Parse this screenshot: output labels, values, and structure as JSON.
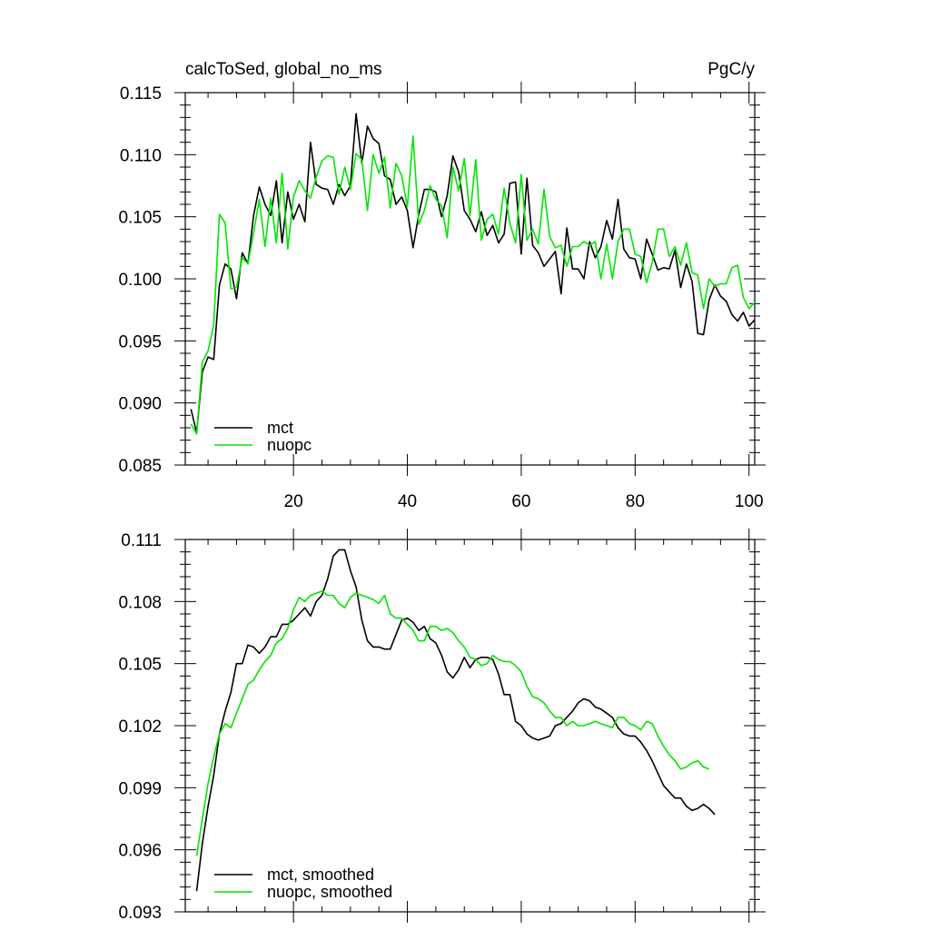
{
  "header": {
    "title_left": "calcToSed, global_no_ms",
    "title_right": "PgC/y"
  },
  "colors": {
    "mct": "#000000",
    "nuopc": "#00e600"
  },
  "chart_data": [
    {
      "type": "line",
      "xlim": [
        1,
        101
      ],
      "ylim": [
        0.085,
        0.115
      ],
      "yticks": [
        "0.085",
        "0.090",
        "0.095",
        "0.100",
        "0.105",
        "0.110",
        "0.115"
      ],
      "xticks": [
        "20",
        "40",
        "60",
        "80",
        "100"
      ],
      "legend_position": "bottom-left",
      "series": [
        {
          "name": "mct",
          "color": "#000000",
          "x_start": 2,
          "values": [
            0.0895,
            0.0876,
            0.0925,
            0.0937,
            0.0935,
            0.0995,
            0.1012,
            0.1008,
            0.0984,
            0.1021,
            0.1012,
            0.1051,
            0.1074,
            0.106,
            0.1051,
            0.1079,
            0.1029,
            0.107,
            0.1048,
            0.106,
            0.1046,
            0.111,
            0.1076,
            0.1073,
            0.1072,
            0.106,
            0.1076,
            0.1067,
            0.1075,
            0.1133,
            0.1093,
            0.1123,
            0.1113,
            0.1109,
            0.1083,
            0.108,
            0.106,
            0.1066,
            0.1055,
            0.1025,
            0.1052,
            0.1072,
            0.1072,
            0.107,
            0.105,
            0.1067,
            0.1099,
            0.1086,
            0.1055,
            0.1048,
            0.1038,
            0.1054,
            0.1035,
            0.1043,
            0.1029,
            0.1036,
            0.1077,
            0.1078,
            0.102,
            0.1081,
            0.1027,
            0.1021,
            0.101,
            0.1016,
            0.1022,
            0.0988,
            0.1041,
            0.1008,
            0.1008,
            0.1,
            0.103,
            0.1017,
            0.1026,
            0.1047,
            0.1032,
            0.1064,
            0.1024,
            0.1017,
            0.1016,
            0.1,
            0.1032,
            0.102,
            0.1007,
            0.1009,
            0.1008,
            0.1023,
            0.0993,
            0.1012,
            0.0998,
            0.0956,
            0.0955,
            0.0983,
            0.0995,
            0.0986,
            0.0982,
            0.0971,
            0.0966,
            0.0973,
            0.0962,
            0.0967
          ]
        },
        {
          "name": "nuopc",
          "color": "#00e600",
          "x_start": 2,
          "values": [
            0.0883,
            0.0875,
            0.0933,
            0.0942,
            0.0963,
            0.1052,
            0.1045,
            0.0992,
            0.0993,
            0.1017,
            0.1012,
            0.1037,
            0.1064,
            0.1026,
            0.1065,
            0.1029,
            0.1085,
            0.1024,
            0.1066,
            0.1079,
            0.1071,
            0.1065,
            0.1082,
            0.1095,
            0.1099,
            0.1098,
            0.1068,
            0.109,
            0.1072,
            0.1101,
            0.1096,
            0.1055,
            0.11,
            0.1085,
            0.1098,
            0.1057,
            0.1093,
            0.1083,
            0.1058,
            0.1115,
            0.1044,
            0.1055,
            0.1075,
            0.1064,
            0.1059,
            0.1033,
            0.109,
            0.1071,
            0.1097,
            0.1051,
            0.1096,
            0.1031,
            0.1048,
            0.1052,
            0.1036,
            0.1073,
            0.1045,
            0.1029,
            0.1084,
            0.1031,
            0.104,
            0.1028,
            0.1072,
            0.1034,
            0.1025,
            0.1027,
            0.101,
            0.1026,
            0.1026,
            0.103,
            0.1027,
            0.103,
            0.1,
            0.1028,
            0.1,
            0.103,
            0.104,
            0.104,
            0.102,
            0.1018,
            0.0997,
            0.1013,
            0.104,
            0.104,
            0.1018,
            0.1026,
            0.1011,
            0.1029,
            0.1005,
            0.1003,
            0.0976,
            0.1,
            0.0994,
            0.0996,
            0.0996,
            0.1009,
            0.1011,
            0.0985,
            0.0976,
            0.0981
          ]
        }
      ]
    },
    {
      "type": "line",
      "xlim": [
        1,
        101
      ],
      "ylim": [
        0.093,
        0.111
      ],
      "yticks": [
        "0.093",
        "0.096",
        "0.099",
        "0.102",
        "0.105",
        "0.108",
        "0.111"
      ],
      "legend_position": "bottom-left",
      "series": [
        {
          "name": "mct, smoothed",
          "color": "#000000",
          "x_start": 3,
          "values": [
            0.094,
            0.0963,
            0.0981,
            0.0996,
            0.1016,
            0.1027,
            0.1036,
            0.105,
            0.105,
            0.1059,
            0.1058,
            0.1055,
            0.1058,
            0.1063,
            0.1063,
            0.1069,
            0.1069,
            0.1071,
            0.1074,
            0.1077,
            0.1073,
            0.108,
            0.1083,
            0.1091,
            0.1102,
            0.1105,
            0.1105,
            0.1095,
            0.1087,
            0.1071,
            0.1061,
            0.1058,
            0.1058,
            0.1057,
            0.1057,
            0.1064,
            0.1071,
            0.1072,
            0.107,
            0.1066,
            0.1068,
            0.1062,
            0.106,
            0.1054,
            0.1046,
            0.1043,
            0.1047,
            0.1053,
            0.1048,
            0.1052,
            0.1053,
            0.1053,
            0.1052,
            0.1045,
            0.1035,
            0.1035,
            0.1022,
            0.102,
            0.1016,
            0.1014,
            0.1013,
            0.1014,
            0.1015,
            0.102,
            0.1021,
            0.1024,
            0.1027,
            0.1031,
            0.1033,
            0.1032,
            0.1029,
            0.1028,
            0.1026,
            0.1024,
            0.1019,
            0.1016,
            0.1015,
            0.1015,
            0.1012,
            0.1008,
            0.1003,
            0.0997,
            0.0991,
            0.0988,
            0.0985,
            0.0985,
            0.0981,
            0.0979,
            0.098,
            0.0982,
            0.098,
            0.0977
          ]
        },
        {
          "name": "nuopc, smoothed",
          "color": "#00e600",
          "x_start": 3,
          "values": [
            0.0957,
            0.0975,
            0.0992,
            0.1005,
            0.1016,
            0.1021,
            0.1019,
            0.1026,
            0.1033,
            0.104,
            0.1042,
            0.1047,
            0.1051,
            0.1054,
            0.106,
            0.1062,
            0.1067,
            0.1076,
            0.1082,
            0.108,
            0.1083,
            0.1084,
            0.1085,
            0.1083,
            0.1083,
            0.1079,
            0.1077,
            0.1082,
            0.1084,
            0.1083,
            0.1082,
            0.1081,
            0.1079,
            0.1083,
            0.1074,
            0.1072,
            0.1072,
            0.1069,
            0.1066,
            0.1061,
            0.1061,
            0.1068,
            0.1068,
            0.1066,
            0.1067,
            0.1065,
            0.1061,
            0.1058,
            0.1053,
            0.1052,
            0.1049,
            0.105,
            0.1054,
            0.1052,
            0.1051,
            0.1051,
            0.1049,
            0.1046,
            0.1039,
            0.1034,
            0.1033,
            0.1031,
            0.1027,
            0.1024,
            0.1024,
            0.102,
            0.1022,
            0.102,
            0.102,
            0.1021,
            0.1022,
            0.1021,
            0.102,
            0.1019,
            0.1024,
            0.1024,
            0.1021,
            0.102,
            0.1018,
            0.1022,
            0.1021,
            0.1015,
            0.101,
            0.1006,
            0.1003,
            0.0999,
            0.1,
            0.1002,
            0.1003,
            0.1,
            0.0999
          ]
        }
      ]
    }
  ]
}
